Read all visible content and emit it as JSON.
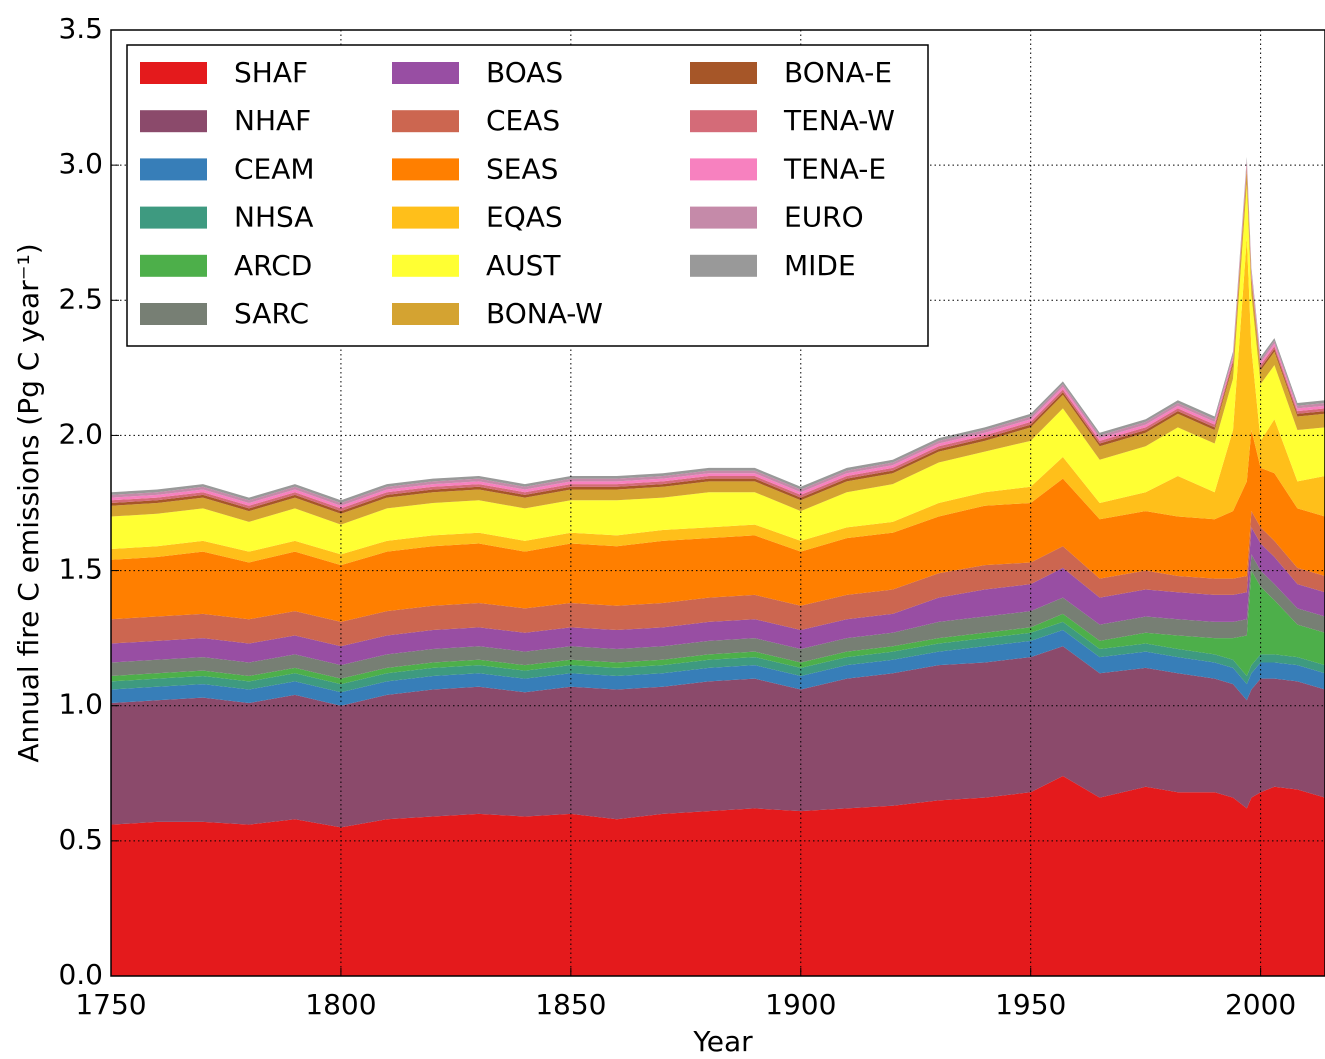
{
  "chart_data": {
    "type": "stacked_area",
    "x_label": "Year",
    "y_label": "Annual fire C emissions (Pg C year⁻¹)",
    "x": [
      1750,
      1760,
      1770,
      1780,
      1790,
      1800,
      1810,
      1820,
      1830,
      1840,
      1850,
      1860,
      1870,
      1880,
      1890,
      1900,
      1910,
      1920,
      1930,
      1940,
      1950,
      1957,
      1965,
      1975,
      1982,
      1990,
      1994,
      1997,
      1998,
      2000,
      2003,
      2008,
      2014
    ],
    "xlim": [
      1750,
      2014
    ],
    "ylim": [
      0,
      3.5
    ],
    "xticks": [
      1750,
      1800,
      1850,
      1900,
      1950,
      2000
    ],
    "yticks": [
      {
        "value": 0,
        "label": "0.0"
      },
      {
        "value": 0.5,
        "label": "0.5"
      },
      {
        "value": 1,
        "label": "1.0"
      },
      {
        "value": 1.5,
        "label": "1.5"
      },
      {
        "value": 2,
        "label": "2.0"
      },
      {
        "value": 2.5,
        "label": "2.5"
      },
      {
        "value": 3,
        "label": "3.0"
      },
      {
        "value": 3.5,
        "label": "3.5"
      }
    ],
    "grid": true,
    "legend": "upper left",
    "series": [
      {
        "name": "SHAF",
        "color": "#e41a1c",
        "values": [
          0.56,
          0.57,
          0.57,
          0.56,
          0.58,
          0.55,
          0.58,
          0.59,
          0.6,
          0.59,
          0.6,
          0.58,
          0.6,
          0.61,
          0.62,
          0.61,
          0.62,
          0.63,
          0.65,
          0.66,
          0.68,
          0.74,
          0.66,
          0.7,
          0.68,
          0.68,
          0.66,
          0.62,
          0.66,
          0.68,
          0.7,
          0.69,
          0.66
        ]
      },
      {
        "name": "NHAF",
        "color": "#8b4a6b",
        "values": [
          0.45,
          0.45,
          0.46,
          0.45,
          0.46,
          0.45,
          0.46,
          0.47,
          0.47,
          0.46,
          0.47,
          0.48,
          0.47,
          0.48,
          0.48,
          0.45,
          0.48,
          0.49,
          0.5,
          0.5,
          0.5,
          0.48,
          0.46,
          0.44,
          0.44,
          0.42,
          0.42,
          0.4,
          0.4,
          0.42,
          0.4,
          0.4,
          0.4
        ]
      },
      {
        "name": "CEAM",
        "color": "#377eb8",
        "values": [
          0.05,
          0.05,
          0.05,
          0.05,
          0.05,
          0.05,
          0.05,
          0.05,
          0.05,
          0.05,
          0.05,
          0.05,
          0.05,
          0.05,
          0.05,
          0.05,
          0.05,
          0.05,
          0.05,
          0.06,
          0.06,
          0.06,
          0.06,
          0.06,
          0.06,
          0.06,
          0.06,
          0.06,
          0.06,
          0.06,
          0.06,
          0.06,
          0.06
        ]
      },
      {
        "name": "NHSA",
        "color": "#3e9a80",
        "values": [
          0.03,
          0.03,
          0.03,
          0.03,
          0.03,
          0.03,
          0.03,
          0.03,
          0.03,
          0.03,
          0.03,
          0.03,
          0.03,
          0.03,
          0.03,
          0.03,
          0.03,
          0.03,
          0.03,
          0.03,
          0.03,
          0.03,
          0.03,
          0.03,
          0.03,
          0.03,
          0.03,
          0.03,
          0.03,
          0.03,
          0.03,
          0.03,
          0.03
        ]
      },
      {
        "name": "ARCD",
        "color": "#4daf4a",
        "values": [
          0.02,
          0.02,
          0.02,
          0.02,
          0.02,
          0.02,
          0.02,
          0.02,
          0.02,
          0.02,
          0.02,
          0.02,
          0.02,
          0.02,
          0.02,
          0.02,
          0.02,
          0.02,
          0.02,
          0.02,
          0.02,
          0.03,
          0.03,
          0.04,
          0.05,
          0.06,
          0.08,
          0.15,
          0.35,
          0.25,
          0.2,
          0.12,
          0.12
        ]
      },
      {
        "name": "SARC",
        "color": "#777f74",
        "values": [
          0.05,
          0.05,
          0.05,
          0.05,
          0.05,
          0.05,
          0.05,
          0.05,
          0.05,
          0.05,
          0.05,
          0.05,
          0.05,
          0.05,
          0.05,
          0.05,
          0.05,
          0.05,
          0.06,
          0.06,
          0.06,
          0.06,
          0.06,
          0.06,
          0.06,
          0.06,
          0.06,
          0.06,
          0.06,
          0.06,
          0.06,
          0.06,
          0.06
        ]
      },
      {
        "name": "BOAS",
        "color": "#984ea3",
        "values": [
          0.07,
          0.07,
          0.07,
          0.07,
          0.07,
          0.07,
          0.07,
          0.07,
          0.07,
          0.07,
          0.07,
          0.07,
          0.07,
          0.07,
          0.07,
          0.07,
          0.07,
          0.07,
          0.09,
          0.1,
          0.1,
          0.11,
          0.1,
          0.1,
          0.1,
          0.1,
          0.1,
          0.1,
          0.1,
          0.1,
          0.1,
          0.09,
          0.09
        ]
      },
      {
        "name": "CEAS",
        "color": "#cc6650",
        "values": [
          0.09,
          0.09,
          0.09,
          0.09,
          0.09,
          0.09,
          0.09,
          0.09,
          0.09,
          0.09,
          0.09,
          0.09,
          0.09,
          0.09,
          0.09,
          0.09,
          0.09,
          0.09,
          0.09,
          0.09,
          0.08,
          0.08,
          0.07,
          0.07,
          0.06,
          0.06,
          0.06,
          0.06,
          0.06,
          0.06,
          0.06,
          0.06,
          0.06
        ]
      },
      {
        "name": "SEAS",
        "color": "#ff7f00",
        "values": [
          0.22,
          0.22,
          0.23,
          0.21,
          0.22,
          0.21,
          0.22,
          0.22,
          0.22,
          0.21,
          0.22,
          0.22,
          0.23,
          0.22,
          0.22,
          0.2,
          0.21,
          0.21,
          0.21,
          0.22,
          0.22,
          0.25,
          0.22,
          0.22,
          0.22,
          0.22,
          0.25,
          0.35,
          0.3,
          0.22,
          0.25,
          0.22,
          0.22
        ]
      },
      {
        "name": "EQAS",
        "color": "#ffbf1a",
        "values": [
          0.04,
          0.04,
          0.04,
          0.04,
          0.04,
          0.04,
          0.04,
          0.04,
          0.04,
          0.04,
          0.04,
          0.04,
          0.04,
          0.04,
          0.04,
          0.04,
          0.04,
          0.04,
          0.05,
          0.05,
          0.06,
          0.08,
          0.06,
          0.07,
          0.15,
          0.1,
          0.3,
          0.9,
          0.3,
          0.1,
          0.2,
          0.1,
          0.15
        ]
      },
      {
        "name": "AUST",
        "color": "#ffff33",
        "values": [
          0.12,
          0.12,
          0.12,
          0.11,
          0.12,
          0.11,
          0.12,
          0.12,
          0.12,
          0.12,
          0.12,
          0.13,
          0.12,
          0.13,
          0.12,
          0.11,
          0.13,
          0.14,
          0.15,
          0.15,
          0.17,
          0.18,
          0.16,
          0.17,
          0.18,
          0.18,
          0.19,
          0.2,
          0.2,
          0.21,
          0.2,
          0.19,
          0.18
        ]
      },
      {
        "name": "BONA-W",
        "color": "#d4a331",
        "values": [
          0.04,
          0.04,
          0.04,
          0.04,
          0.04,
          0.04,
          0.04,
          0.04,
          0.04,
          0.04,
          0.04,
          0.04,
          0.04,
          0.04,
          0.04,
          0.04,
          0.04,
          0.04,
          0.04,
          0.04,
          0.05,
          0.05,
          0.05,
          0.05,
          0.05,
          0.05,
          0.05,
          0.05,
          0.05,
          0.05,
          0.05,
          0.05,
          0.05
        ]
      },
      {
        "name": "BONA-E",
        "color": "#a65628",
        "values": [
          0.01,
          0.01,
          0.01,
          0.01,
          0.01,
          0.01,
          0.01,
          0.01,
          0.01,
          0.01,
          0.01,
          0.01,
          0.01,
          0.01,
          0.01,
          0.01,
          0.01,
          0.01,
          0.01,
          0.01,
          0.01,
          0.01,
          0.01,
          0.01,
          0.01,
          0.01,
          0.01,
          0.01,
          0.01,
          0.01,
          0.01,
          0.01,
          0.01
        ]
      },
      {
        "name": "TENA-W",
        "color": "#d46b78",
        "values": [
          0.01,
          0.01,
          0.01,
          0.01,
          0.01,
          0.01,
          0.01,
          0.01,
          0.01,
          0.01,
          0.01,
          0.01,
          0.01,
          0.01,
          0.01,
          0.01,
          0.01,
          0.01,
          0.01,
          0.01,
          0.01,
          0.01,
          0.01,
          0.01,
          0.01,
          0.01,
          0.01,
          0.01,
          0.01,
          0.01,
          0.01,
          0.01,
          0.01
        ]
      },
      {
        "name": "TENA-E",
        "color": "#f781bf",
        "values": [
          0.01,
          0.01,
          0.01,
          0.01,
          0.01,
          0.01,
          0.01,
          0.01,
          0.01,
          0.01,
          0.01,
          0.01,
          0.01,
          0.01,
          0.01,
          0.01,
          0.01,
          0.01,
          0.01,
          0.01,
          0.01,
          0.01,
          0.01,
          0.01,
          0.01,
          0.01,
          0.01,
          0.01,
          0.01,
          0.01,
          0.01,
          0.01,
          0.01
        ]
      },
      {
        "name": "EURO",
        "color": "#c58aa9",
        "values": [
          0.01,
          0.01,
          0.01,
          0.01,
          0.01,
          0.01,
          0.01,
          0.01,
          0.01,
          0.01,
          0.01,
          0.01,
          0.01,
          0.01,
          0.01,
          0.01,
          0.01,
          0.01,
          0.01,
          0.01,
          0.01,
          0.01,
          0.01,
          0.01,
          0.01,
          0.01,
          0.01,
          0.01,
          0.01,
          0.01,
          0.01,
          0.01,
          0.01
        ]
      },
      {
        "name": "MIDE",
        "color": "#999999",
        "values": [
          0.01,
          0.01,
          0.01,
          0.01,
          0.01,
          0.01,
          0.01,
          0.01,
          0.01,
          0.01,
          0.01,
          0.01,
          0.01,
          0.01,
          0.01,
          0.01,
          0.01,
          0.01,
          0.01,
          0.01,
          0.01,
          0.01,
          0.01,
          0.01,
          0.01,
          0.01,
          0.01,
          0.01,
          0.01,
          0.01,
          0.01,
          0.01,
          0.01
        ]
      }
    ]
  }
}
